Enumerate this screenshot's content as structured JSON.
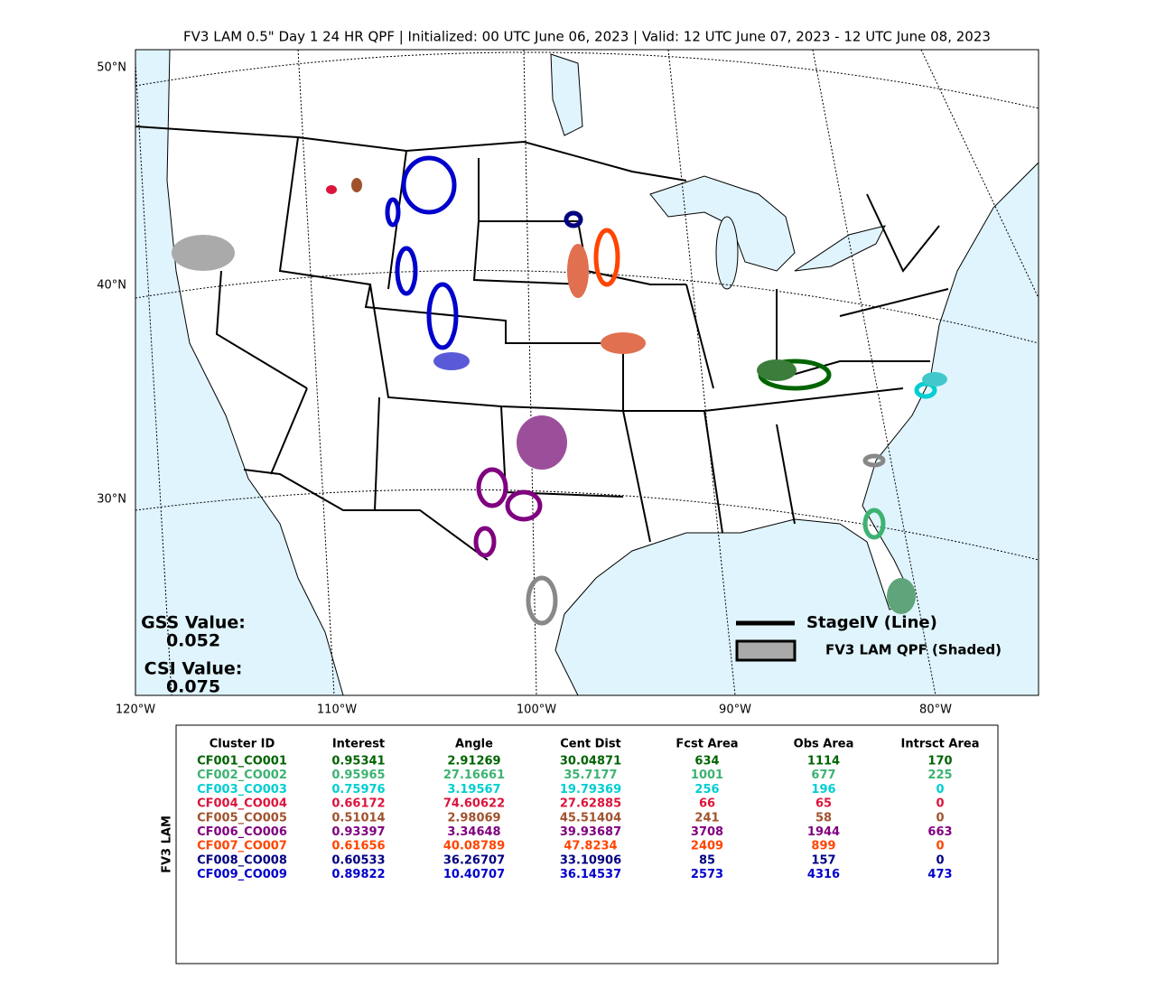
{
  "header": {
    "title": "FV3 LAM 0.5\" Day 1 24 HR QPF | Initialized: 00 UTC June 06, 2023 | Valid: 12 UTC June 07, 2023 - 12 UTC June 08, 2023"
  },
  "map": {
    "lat_labels": [
      "50°N",
      "40°N",
      "30°N"
    ],
    "lon_labels": [
      "120°W",
      "110°W",
      "100°W",
      "90°W",
      "80°W"
    ],
    "scores": {
      "gss_label": "GSS Value:",
      "gss_value": "0.052",
      "csi_label": "CSI Value:",
      "csi_value": "0.075"
    },
    "legend": {
      "line": "StageIV (Line)",
      "shaded": "FV3 LAM QPF (Shaded)"
    }
  },
  "table": {
    "side_label": "FV3 LAM",
    "columns": [
      "Cluster ID",
      "Interest",
      "Angle",
      "Cent Dist",
      "Fcst Area",
      "Obs Area",
      "Intrsct Area"
    ],
    "rows": [
      {
        "color": "#006400",
        "cells": [
          "CF001_CO001",
          "0.95341",
          "2.91269",
          "30.04871",
          "634",
          "1114",
          "170"
        ]
      },
      {
        "color": "#3cb371",
        "cells": [
          "CF002_CO002",
          "0.95965",
          "27.16661",
          "35.7177",
          "1001",
          "677",
          "225"
        ]
      },
      {
        "color": "#00ced1",
        "cells": [
          "CF003_CO003",
          "0.75976",
          "3.19567",
          "19.79369",
          "256",
          "196",
          "0"
        ]
      },
      {
        "color": "#dc143c",
        "cells": [
          "CF004_CO004",
          "0.66172",
          "74.60622",
          "27.62885",
          "66",
          "65",
          "0"
        ]
      },
      {
        "color": "#a0522d",
        "cells": [
          "CF005_CO005",
          "0.51014",
          "2.98069",
          "45.51404",
          "241",
          "58",
          "0"
        ]
      },
      {
        "color": "#800080",
        "cells": [
          "CF006_CO006",
          "0.93397",
          "3.34648",
          "39.93687",
          "3708",
          "1944",
          "663"
        ]
      },
      {
        "color": "#ff4500",
        "cells": [
          "CF007_CO007",
          "0.61656",
          "40.08789",
          "47.8234",
          "2409",
          "899",
          "0"
        ]
      },
      {
        "color": "#000080",
        "cells": [
          "CF008_CO008",
          "0.60533",
          "36.26707",
          "33.10906",
          "85",
          "157",
          "0"
        ]
      },
      {
        "color": "#0000cd",
        "cells": [
          "CF009_CO009",
          "0.89822",
          "10.40707",
          "36.14537",
          "2573",
          "4316",
          "473"
        ]
      }
    ]
  }
}
